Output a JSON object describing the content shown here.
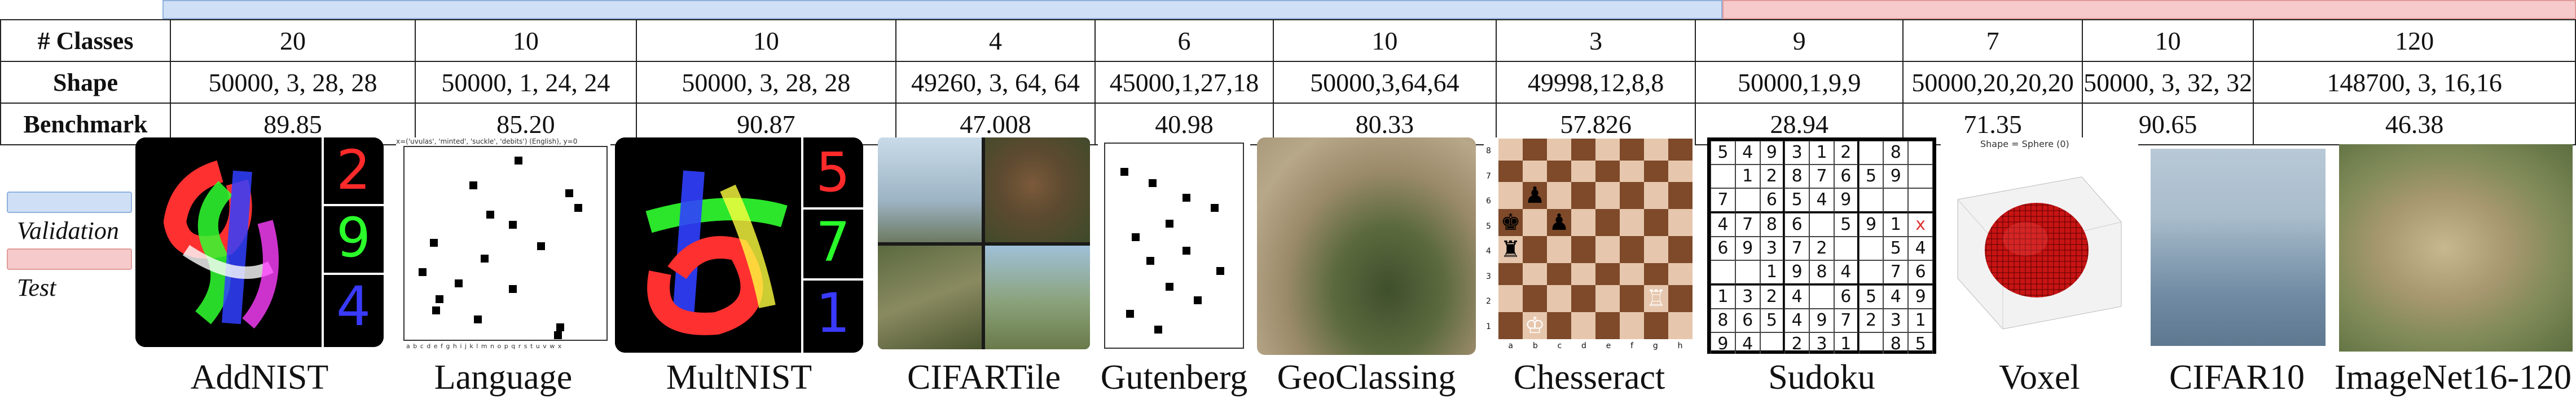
{
  "table": {
    "row_headers": [
      "# Classes",
      "Shape",
      "Benchmark"
    ],
    "columns": [
      {
        "classes": "20",
        "shape": "50000, 3, 28, 28",
        "benchmark": "89.85"
      },
      {
        "classes": "10",
        "shape": "50000, 1, 24, 24",
        "benchmark": "85.20"
      },
      {
        "classes": "10",
        "shape": "50000, 3, 28, 28",
        "benchmark": "90.87"
      },
      {
        "classes": "4",
        "shape": "49260, 3, 64, 64",
        "benchmark": "47.008"
      },
      {
        "classes": "6",
        "shape": "45000,1,27,18",
        "benchmark": "40.98"
      },
      {
        "classes": "10",
        "shape": "50000,3,64,64",
        "benchmark": "80.33"
      },
      {
        "classes": "3",
        "shape": "49998,12,8,8",
        "benchmark": "57.826"
      },
      {
        "classes": "9",
        "shape": "50000,1,9,9",
        "benchmark": "28.94"
      },
      {
        "classes": "7",
        "shape": "50000,20,20,20",
        "benchmark": "71.35"
      },
      {
        "classes": "10",
        "shape": "50000, 3, 32, 32",
        "benchmark": "90.65"
      },
      {
        "classes": "120",
        "shape": "148700, 3, 16,16",
        "benchmark": "46.38"
      }
    ]
  },
  "legend": {
    "validation": "Validation",
    "test": "Test"
  },
  "datasets": [
    {
      "name": "AddNIST",
      "digits": [
        "2",
        "9",
        "4"
      ]
    },
    {
      "name": "Language",
      "caption": "x=('uvulas', 'minted', 'suckle', 'debits') (English), y=0",
      "axis": "a b c d e f g h i j k l m n o p q r s t u v w x"
    },
    {
      "name": "MultNIST",
      "digits": [
        "5",
        "7",
        "1"
      ]
    },
    {
      "name": "CIFARTile"
    },
    {
      "name": "Gutenberg"
    },
    {
      "name": "GeoClassing"
    },
    {
      "name": "Chesseract",
      "files": [
        "a",
        "b",
        "c",
        "d",
        "e",
        "f",
        "g",
        "h"
      ],
      "ranks": [
        "8",
        "7",
        "6",
        "5",
        "4",
        "3",
        "2",
        "1"
      ]
    },
    {
      "name": "Sudoku",
      "grid": [
        "5",
        "4",
        "9",
        "3",
        "1",
        "2",
        "",
        "8",
        "",
        "",
        "1",
        "2",
        "8",
        "7",
        "6",
        "5",
        "9",
        "",
        "7",
        "",
        "6",
        "5",
        "4",
        "9",
        "",
        "",
        "",
        "4",
        "7",
        "8",
        "6",
        "",
        "5",
        "9",
        "1",
        "x",
        "6",
        "9",
        "3",
        "7",
        "2",
        "",
        "",
        "5",
        "4",
        "",
        "",
        "1",
        "9",
        "8",
        "4",
        "",
        "7",
        "6",
        "1",
        "3",
        "2",
        "4",
        "",
        "6",
        "5",
        "4",
        "9",
        "8",
        "6",
        "5",
        "4",
        "9",
        "7",
        "2",
        "3",
        "1",
        "9",
        "4",
        "",
        "2",
        "3",
        "1",
        "",
        "8",
        "5"
      ]
    },
    {
      "name": "Voxel",
      "caption": "Shape = Sphere (0)"
    },
    {
      "name": "CIFAR10"
    },
    {
      "name": "ImageNet16-120"
    }
  ],
  "colors": {
    "validation": "#cfe0f6",
    "test": "#f6caca"
  }
}
